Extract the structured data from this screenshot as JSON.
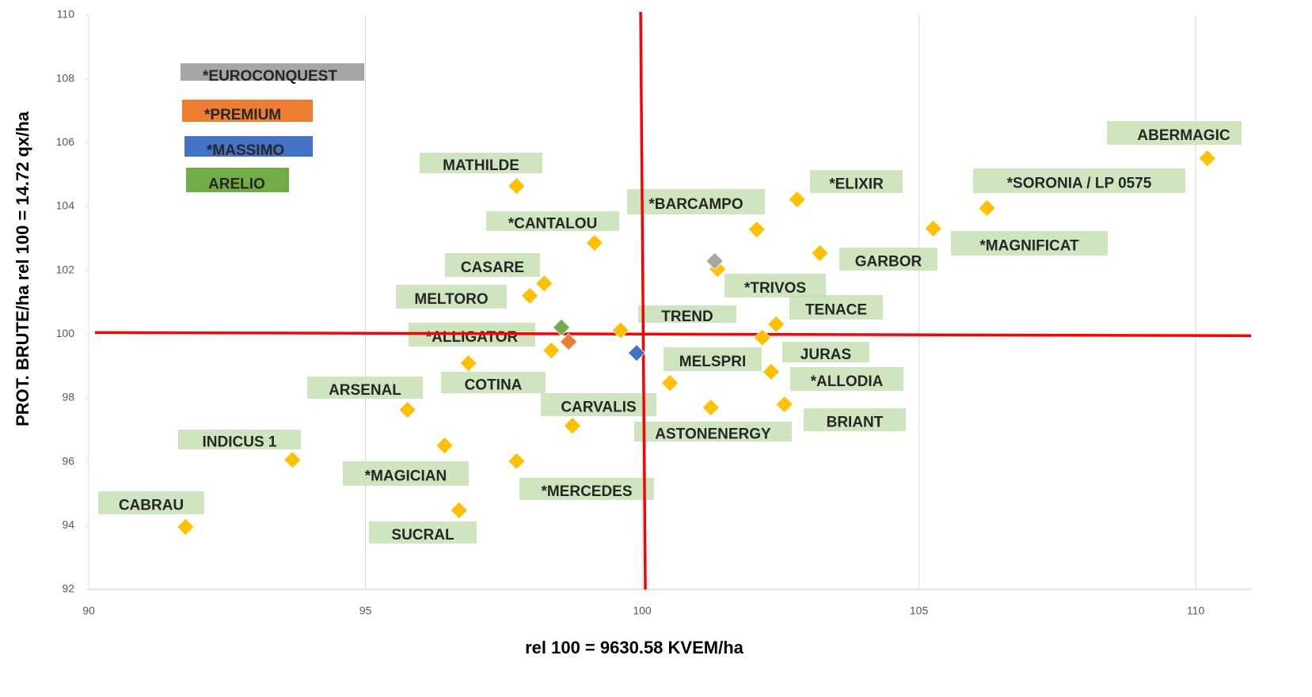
{
  "chart_data": {
    "type": "scatter",
    "x_label": "rel 100 = 9630.58 KVEM/ha",
    "y_label": "PROT. BRUTE/ha  rel 100 = 14.72 qx/ha",
    "xlim": [
      90,
      111
    ],
    "xticks": [
      90,
      95,
      100,
      105,
      110
    ],
    "ylim": [
      92,
      110
    ],
    "yticks": [
      92,
      94,
      96,
      98,
      100,
      102,
      104,
      106,
      108,
      110
    ],
    "grid": "x",
    "ref_lines": {
      "x": 100,
      "y": 100,
      "color": "#ff0000"
    },
    "series": [
      {
        "name": "*EUROCONQUEST",
        "color": "#a5a5a5",
        "x": [
          101.31
        ],
        "values": [
          102.29
        ]
      },
      {
        "name": "*PREMIUM",
        "color": "#ed7d31",
        "x": [
          98.67
        ],
        "values": [
          99.76
        ]
      },
      {
        "name": "*MASSIMO",
        "color": "#4472c4",
        "x": [
          99.9
        ],
        "values": [
          99.41
        ]
      },
      {
        "name": "ARELIO",
        "color": "#70ad47",
        "x": [
          98.54
        ],
        "values": [
          100.21
        ]
      }
    ],
    "points": {
      "color": "#ffc000",
      "x": [
        110.21,
        106.23,
        105.26,
        102.8,
        102.07,
        103.21,
        101.36,
        102.42,
        102.17,
        102.33,
        102.57,
        100.5,
        101.24,
        99.61,
        98.36,
        97.73,
        99.14,
        98.23,
        97.97,
        96.86,
        98.74,
        95.76,
        93.68,
        96.43,
        97.73,
        96.69,
        91.75
      ],
      "values": [
        105.51,
        103.95,
        103.31,
        104.22,
        103.28,
        102.54,
        102.04,
        100.31,
        99.89,
        98.82,
        97.8,
        98.47,
        97.7,
        100.12,
        99.49,
        104.64,
        102.86,
        101.59,
        101.2,
        99.09,
        97.13,
        97.63,
        96.06,
        96.51,
        96.02,
        94.48,
        93.96
      ]
    },
    "annotations": [
      "MATHILDE",
      "*CANTALOU",
      "CASARE",
      "MELTORO",
      "*ALLIGATOR",
      "COTINA",
      "ARSENAL",
      "INDICUS 1",
      "*MAGICIAN",
      "*MERCEDES",
      "CABRAU",
      "SUCRAL",
      "CARVALIS",
      "ASTONENERGY",
      "TREND",
      "*BARCAMPO",
      "*ELIXIR",
      "*SORONIA / LP 0575",
      "*MAGNIFICAT",
      "GARBOR",
      "*TRIVOS",
      "TENACE",
      "MELSPRI",
      "JURAS",
      "*ALLODIA",
      "BRIANT",
      "ABERMAGIC"
    ]
  }
}
